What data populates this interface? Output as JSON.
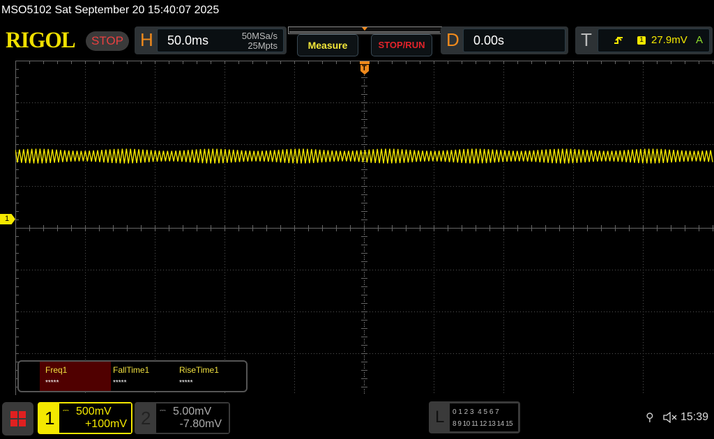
{
  "title": "MSO5102  Sat September 20 15:40:07 2025",
  "logo": "RIGOL",
  "run_state": "STOP",
  "horizontal": {
    "letter": "H",
    "timebase": "50.0ms",
    "sample_rate": "50MSa/s",
    "memory_depth": "25Mpts"
  },
  "buttons": {
    "measure": "Measure",
    "stop_run": "STOP/RUN"
  },
  "delay": {
    "letter": "D",
    "value": "0.00s"
  },
  "trigger": {
    "letter": "T",
    "slope_icon": "rising-edge-icon",
    "source": "1",
    "level": "27.9mV",
    "mode": "A"
  },
  "trigger_marker": "T",
  "channel_marker": "1",
  "measurements": [
    {
      "name": "Freq1",
      "value": "*****"
    },
    {
      "name": "FallTime1",
      "value": "*****"
    },
    {
      "name": "RiseTime1",
      "value": "*****"
    }
  ],
  "channel1": {
    "number": "1",
    "scale": "500mV",
    "offset": "+100mV",
    "coupling_icon": "dc-coupling-icon"
  },
  "channel2": {
    "number": "2",
    "scale": "5.00mV",
    "offset": "-7.80mV",
    "coupling_icon": "dc-coupling-icon"
  },
  "logic": {
    "letter": "L",
    "row1": "0 1 2 3  4 5 6 7",
    "row2": "8 9 10 11 12 13 14 15"
  },
  "status": {
    "clock": "15:39",
    "usb_icon": "usb-icon",
    "mute_icon": "speaker-muted-icon"
  },
  "colors": {
    "ch1": "#f4e800",
    "accent_orange": "#f08a1c",
    "stop_red": "#e3232a",
    "grid": "#555555"
  }
}
